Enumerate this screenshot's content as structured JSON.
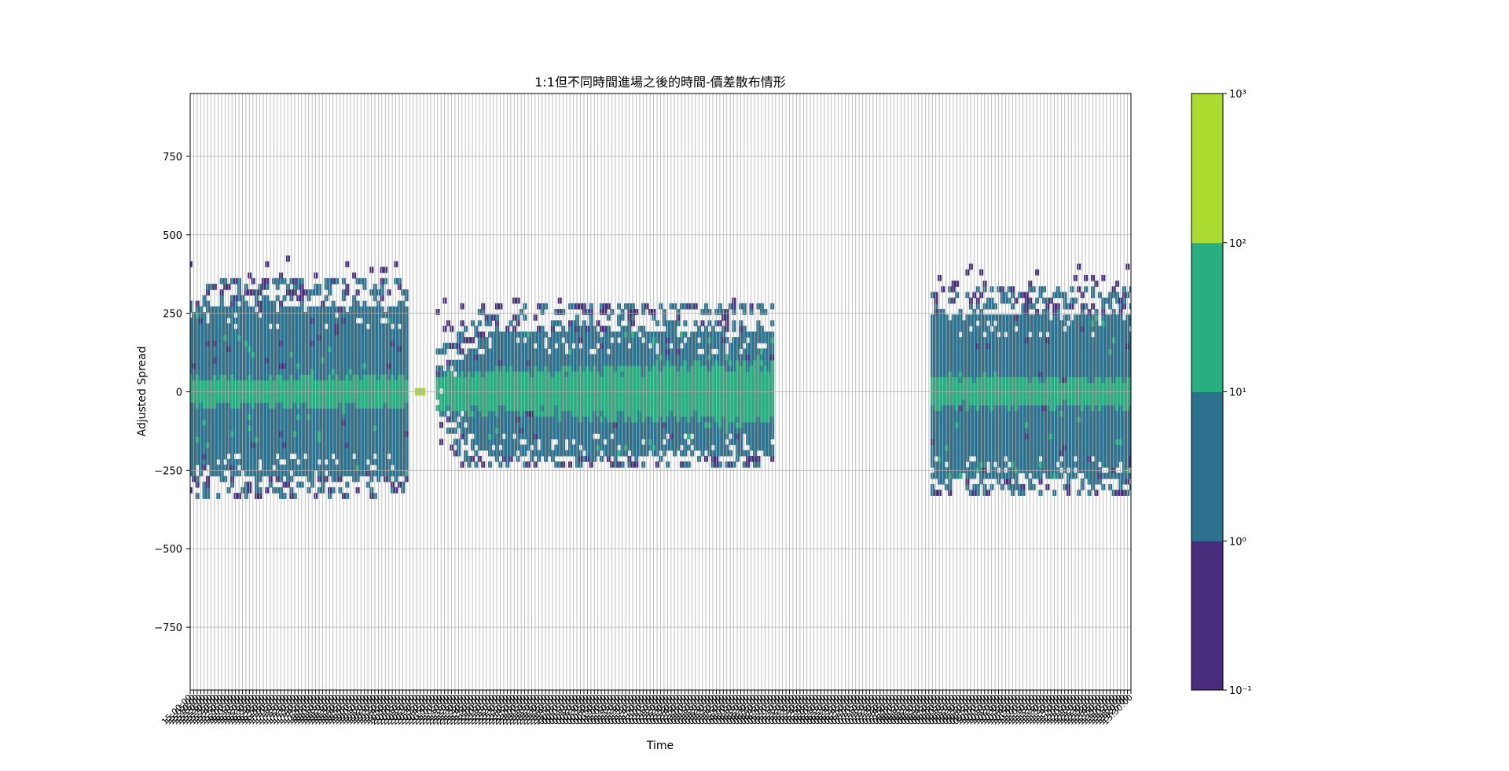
{
  "chart_data": {
    "type": "heatmap",
    "title": "1:1但不同時間進場之後的時間-價差散布情形",
    "xlabel": "Time",
    "ylabel": "Adjusted Spread",
    "ylim": [
      -950,
      950
    ],
    "yticks": [
      -750,
      -500,
      -250,
      0,
      250,
      500,
      750
    ],
    "grid": true,
    "time_start": "15:00:00",
    "time_end": "13:30:00",
    "time_step_minutes": 5,
    "sessions": [
      {
        "start": "15:00:00",
        "end": "20:10:00",
        "range": [
          -260,
          270
        ],
        "outer": [
          -340,
          420
        ]
      },
      {
        "start": "20:55:00",
        "end": "04:55:00",
        "range": [
          -210,
          190
        ],
        "outer": [
          -240,
          290
        ]
      },
      {
        "start": "08:45:00",
        "end": "13:30:00",
        "range": [
          -270,
          250
        ],
        "outer": [
          -330,
          400
        ]
      }
    ],
    "colorbar": {
      "scale": "log",
      "ticks": [
        "10⁻¹",
        "10⁰",
        "10¹",
        "10²",
        "10³"
      ],
      "levels": [
        0.1,
        1,
        10,
        100,
        1000
      ],
      "colors": [
        "#472d7b",
        "#2c728e",
        "#28ae80",
        "#addc30"
      ]
    }
  }
}
